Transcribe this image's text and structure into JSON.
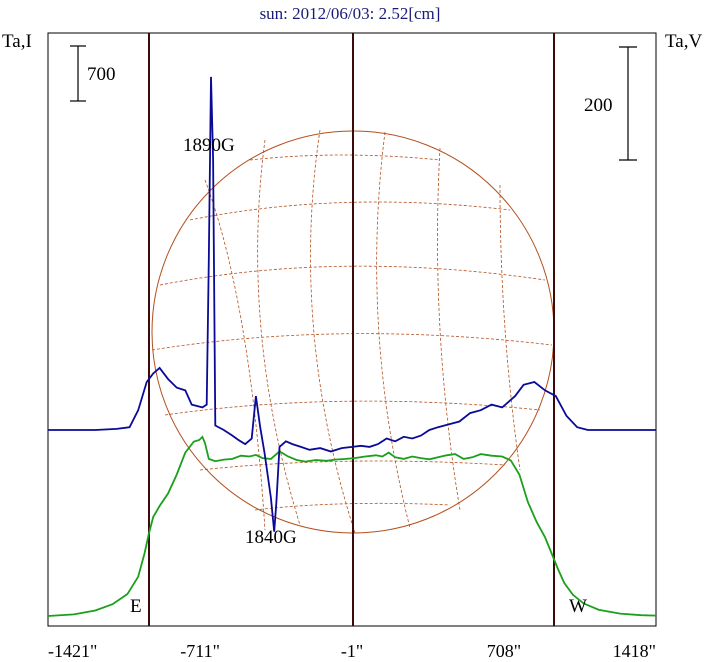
{
  "chart_data": {
    "type": "line",
    "title": "sun: 2012/06/03: 2.52[cm]",
    "left_axis_label": "Ta,I",
    "right_axis_label": "Ta,V",
    "x_tick_labels": [
      "-1421\"",
      "-711\"",
      "-1\"",
      "708\"",
      "1418\""
    ],
    "x_ticks": [
      -1421,
      -711,
      -1,
      708,
      1418
    ],
    "xlim": [
      -1421,
      1418
    ],
    "scale_bars": {
      "left_value": "700",
      "right_value": "200"
    },
    "limb_markers": {
      "east": "E",
      "west": "W",
      "x_east": -950,
      "x_west": 950,
      "x_center": -1
    },
    "annotations": [
      {
        "text": "1890G",
        "x": -650
      },
      {
        "text": "1840G",
        "x": -360
      }
    ],
    "colors": {
      "intensity": "#1aa01a",
      "polarization": "#0a0a96",
      "grid": "#b4501e",
      "limb_lines": "#3c0a0a",
      "title": "#1a1a78"
    },
    "series": [
      {
        "key": "intensity",
        "points": [
          [
            -1421,
            0.0
          ],
          [
            -1300,
            20
          ],
          [
            -1200,
            70
          ],
          [
            -1120,
            150
          ],
          [
            -1050,
            280
          ],
          [
            -1000,
            500
          ],
          [
            -970,
            800
          ],
          [
            -950,
            1050
          ],
          [
            -930,
            1260
          ],
          [
            -900,
            1400
          ],
          [
            -860,
            1560
          ],
          [
            -820,
            1800
          ],
          [
            -780,
            2080
          ],
          [
            -740,
            2220
          ],
          [
            -715,
            2240
          ],
          [
            -700,
            2280
          ],
          [
            -688,
            2200
          ],
          [
            -670,
            2000
          ],
          [
            -640,
            1970
          ],
          [
            -600,
            1990
          ],
          [
            -560,
            2000
          ],
          [
            -520,
            2040
          ],
          [
            -480,
            2030
          ],
          [
            -450,
            2050
          ],
          [
            -420,
            2010
          ],
          [
            -380,
            2000
          ],
          [
            -340,
            2095
          ],
          [
            -300,
            2030
          ],
          [
            -260,
            1985
          ],
          [
            -220,
            1965
          ],
          [
            -170,
            1985
          ],
          [
            -120,
            1975
          ],
          [
            -80,
            1990
          ],
          [
            -30,
            2000
          ],
          [
            10,
            2010
          ],
          [
            60,
            2030
          ],
          [
            110,
            2045
          ],
          [
            140,
            2030
          ],
          [
            170,
            2080
          ],
          [
            200,
            2020
          ],
          [
            240,
            2000
          ],
          [
            280,
            2030
          ],
          [
            320,
            2010
          ],
          [
            360,
            1995
          ],
          [
            400,
            2020
          ],
          [
            440,
            2045
          ],
          [
            480,
            2060
          ],
          [
            520,
            2000
          ],
          [
            560,
            2020
          ],
          [
            600,
            2060
          ],
          [
            650,
            2040
          ],
          [
            700,
            2030
          ],
          [
            740,
            1980
          ],
          [
            780,
            1800
          ],
          [
            820,
            1450
          ],
          [
            860,
            1200
          ],
          [
            900,
            1000
          ],
          [
            930,
            800
          ],
          [
            960,
            600
          ],
          [
            990,
            420
          ],
          [
            1030,
            270
          ],
          [
            1080,
            160
          ],
          [
            1150,
            80
          ],
          [
            1250,
            30
          ],
          [
            1350,
            10
          ],
          [
            1418,
            5
          ]
        ]
      },
      {
        "key": "polarization",
        "points": [
          [
            -1421,
            0.0
          ],
          [
            -1200,
            0.0
          ],
          [
            -1100,
            2
          ],
          [
            -1040,
            5
          ],
          [
            -1000,
            35
          ],
          [
            -960,
            85
          ],
          [
            -930,
            100
          ],
          [
            -900,
            110
          ],
          [
            -860,
            90
          ],
          [
            -820,
            75
          ],
          [
            -780,
            70
          ],
          [
            -750,
            45
          ],
          [
            -700,
            40
          ],
          [
            -680,
            45
          ],
          [
            -670,
            300
          ],
          [
            -660,
            625
          ],
          [
            -650,
            480
          ],
          [
            -640,
            8
          ],
          [
            -600,
            0
          ],
          [
            -560,
            -10
          ],
          [
            -530,
            -18
          ],
          [
            -500,
            -25
          ],
          [
            -470,
            -15
          ],
          [
            -450,
            60
          ],
          [
            -430,
            5
          ],
          [
            -410,
            -40
          ],
          [
            -380,
            -120
          ],
          [
            -365,
            -180
          ],
          [
            -355,
            -130
          ],
          [
            -340,
            -30
          ],
          [
            -310,
            -20
          ],
          [
            -280,
            -25
          ],
          [
            -240,
            -30
          ],
          [
            -200,
            -35
          ],
          [
            -150,
            -32
          ],
          [
            -100,
            -38
          ],
          [
            -50,
            -32
          ],
          [
            0,
            -30
          ],
          [
            40,
            -28
          ],
          [
            80,
            -30
          ],
          [
            120,
            -25
          ],
          [
            160,
            -15
          ],
          [
            200,
            -20
          ],
          [
            240,
            -12
          ],
          [
            280,
            -15
          ],
          [
            320,
            -10
          ],
          [
            360,
            0
          ],
          [
            400,
            5
          ],
          [
            450,
            10
          ],
          [
            500,
            15
          ],
          [
            550,
            30
          ],
          [
            600,
            35
          ],
          [
            650,
            45
          ],
          [
            700,
            40
          ],
          [
            760,
            60
          ],
          [
            800,
            80
          ],
          [
            850,
            85
          ],
          [
            900,
            70
          ],
          [
            950,
            60
          ],
          [
            1000,
            25
          ],
          [
            1050,
            5
          ],
          [
            1100,
            0
          ],
          [
            1200,
            0
          ],
          [
            1300,
            0
          ],
          [
            1418,
            0
          ]
        ]
      }
    ]
  }
}
